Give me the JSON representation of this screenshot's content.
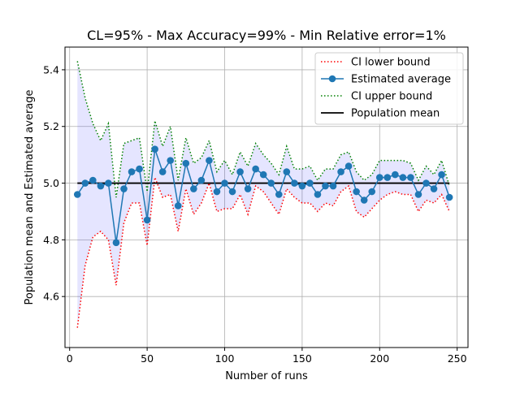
{
  "chart_data": {
    "type": "line",
    "title": "CL=95% - Max Accuracy=99% - Min Relative error=1%",
    "xlabel": "Number of runs",
    "ylabel": "Population mean and Estimated average",
    "xlim": [
      -3,
      257
    ],
    "ylim": [
      4.42,
      5.48
    ],
    "xticks": [
      0,
      50,
      100,
      150,
      200,
      250
    ],
    "yticks": [
      4.6,
      4.8,
      5.0,
      5.2,
      5.4
    ],
    "xtick_labels": [
      "0",
      "50",
      "100",
      "150",
      "200",
      "250"
    ],
    "ytick_labels": [
      "4.6",
      "4.8",
      "5.0",
      "5.2",
      "5.4"
    ],
    "grid": true,
    "legend_position": "top-right",
    "x": [
      5,
      10,
      15,
      20,
      25,
      30,
      35,
      40,
      45,
      50,
      55,
      60,
      65,
      70,
      75,
      80,
      85,
      90,
      95,
      100,
      105,
      110,
      115,
      120,
      125,
      130,
      135,
      140,
      145,
      150,
      155,
      160,
      165,
      170,
      175,
      180,
      185,
      190,
      195,
      200,
      205,
      210,
      215,
      220,
      225,
      230,
      235,
      240,
      245
    ],
    "series": [
      {
        "name": "CI lower bound",
        "color": "#ff0000",
        "style": "dotted",
        "values": [
          4.49,
          4.71,
          4.81,
          4.83,
          4.8,
          4.64,
          4.86,
          4.93,
          4.93,
          4.78,
          5.02,
          4.95,
          4.96,
          4.83,
          4.98,
          4.89,
          4.93,
          5.0,
          4.9,
          4.91,
          4.91,
          4.96,
          4.89,
          4.99,
          4.97,
          4.93,
          4.89,
          4.98,
          4.95,
          4.93,
          4.93,
          4.9,
          4.93,
          4.92,
          4.97,
          4.99,
          4.9,
          4.88,
          4.91,
          4.94,
          4.96,
          4.97,
          4.96,
          4.96,
          4.9,
          4.94,
          4.93,
          4.96,
          4.9
        ]
      },
      {
        "name": "Estimated average",
        "color": "#1f77b4",
        "style": "solid-markers",
        "values": [
          4.96,
          5.0,
          5.01,
          4.99,
          5.0,
          4.79,
          4.98,
          5.04,
          5.05,
          4.87,
          5.12,
          5.04,
          5.08,
          4.92,
          5.07,
          4.98,
          5.01,
          5.08,
          4.97,
          5.0,
          4.97,
          5.04,
          4.98,
          5.05,
          5.03,
          5.0,
          4.96,
          5.04,
          5.0,
          4.99,
          5.0,
          4.96,
          4.99,
          4.99,
          5.04,
          5.06,
          4.97,
          4.94,
          4.97,
          5.02,
          5.02,
          5.03,
          5.02,
          5.02,
          4.96,
          5.0,
          4.98,
          5.03,
          4.95
        ]
      },
      {
        "name": "CI upper bound",
        "color": "#008000",
        "style": "dotted",
        "values": [
          5.43,
          5.3,
          5.21,
          5.15,
          5.21,
          4.95,
          5.14,
          5.15,
          5.16,
          4.97,
          5.22,
          5.13,
          5.2,
          5.01,
          5.16,
          5.07,
          5.09,
          5.15,
          5.04,
          5.08,
          5.03,
          5.11,
          5.06,
          5.14,
          5.1,
          5.07,
          5.03,
          5.13,
          5.05,
          5.05,
          5.06,
          5.01,
          5.05,
          5.05,
          5.1,
          5.11,
          5.04,
          5.01,
          5.03,
          5.08,
          5.08,
          5.08,
          5.08,
          5.07,
          5.01,
          5.06,
          5.03,
          5.08,
          4.99
        ]
      },
      {
        "name": "Population mean",
        "color": "#000000",
        "style": "solid",
        "x_range": [
          5,
          245
        ],
        "value": 5.0
      }
    ],
    "band_color": "#0000ff"
  }
}
